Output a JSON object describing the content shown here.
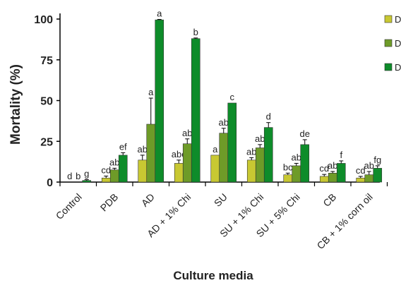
{
  "chart_data": {
    "type": "bar",
    "xlabel": "Culture media",
    "ylabel": "Mortality (%)",
    "ylim": [
      0,
      100
    ],
    "yticks": [
      0,
      25,
      50,
      75,
      100
    ],
    "grid": false,
    "legend_position": "top-right",
    "categories": [
      "Control",
      "PDB",
      "AD",
      "AD + 1% Chi",
      "SU",
      "SU + 1% Chi",
      "SU + 5% Chi",
      "CB",
      "CB + 1% corn oil"
    ],
    "series": [
      {
        "name": "D",
        "color": "#c8c832",
        "values": [
          0,
          2.5,
          13.5,
          11.5,
          16.5,
          13.5,
          4.5,
          3.5,
          2.5
        ],
        "errors": [
          0,
          1.2,
          3,
          2,
          0,
          1.5,
          1,
          1.2,
          1
        ],
        "letters": [
          "d",
          "cd",
          "ab",
          "abc",
          "a",
          "ab",
          "bc",
          "cd",
          "cd"
        ]
      },
      {
        "name": "D",
        "color": "#6e9b28",
        "values": [
          0,
          7.5,
          35.5,
          23.5,
          30,
          21,
          10,
          5.5,
          4.5
        ],
        "errors": [
          0,
          1,
          16,
          3,
          3,
          2,
          1.5,
          1,
          2
        ],
        "letters": [
          "b",
          "ab",
          "a",
          "ab",
          "ab",
          "ab",
          "ab",
          "ab",
          "ab"
        ]
      },
      {
        "name": "D",
        "color": "#0e8c2a",
        "values": [
          1,
          16.5,
          99.5,
          88,
          48.5,
          33.5,
          23,
          11.5,
          8.5
        ],
        "errors": [
          0.5,
          1.5,
          0.3,
          0.4,
          0,
          3,
          3,
          1.5,
          1.5
        ],
        "letters": [
          "g",
          "ef",
          "a",
          "b",
          "c",
          "d",
          "de",
          "f",
          "fg"
        ]
      }
    ]
  }
}
